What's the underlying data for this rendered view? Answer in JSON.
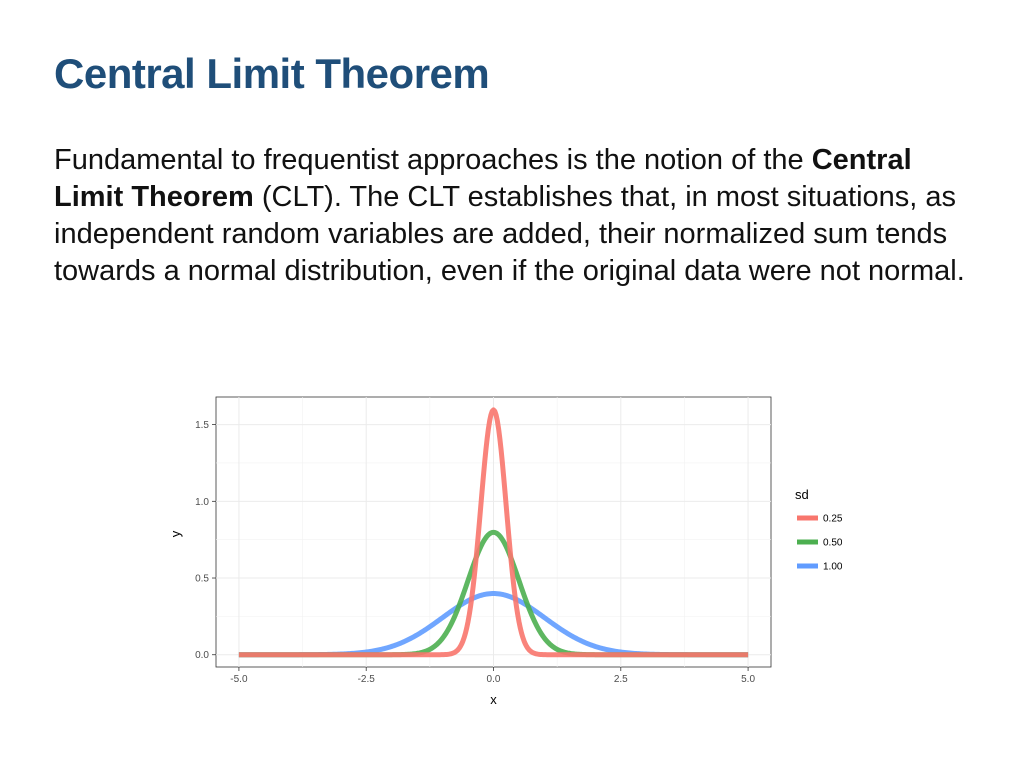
{
  "slide": {
    "title": "Central Limit Theorem",
    "body": {
      "text_before": "Fundamental to frequentist approaches is the notion of the ",
      "bold": "Central Limit Theorem",
      "text_after": " (CLT).  The CLT establishes that, in most situations, as independent random variables are added, their normalized sum tends towards a normal distribution, even if the original data were not normal."
    }
  },
  "chart_data": {
    "type": "line",
    "title": "",
    "xlabel": "x",
    "ylabel": "y",
    "xlim": [
      -5.0,
      5.0
    ],
    "ylim": [
      0.0,
      1.6
    ],
    "x_ticks": [
      -5.0,
      -2.5,
      0.0,
      2.5,
      5.0
    ],
    "x_tick_labels": [
      "-5.0",
      "-2.5",
      "0.0",
      "2.5",
      "5.0"
    ],
    "y_ticks": [
      0.0,
      0.5,
      1.0,
      1.5
    ],
    "y_tick_labels": [
      "0.0",
      "0.5",
      "1.0",
      "1.5"
    ],
    "grid": true,
    "legend": {
      "title": "sd",
      "position": "right"
    },
    "series": [
      {
        "name": "0.25",
        "sd": 0.25,
        "mean": 0,
        "color": "#f8766d",
        "peak": 1.596
      },
      {
        "name": "0.50",
        "sd": 0.5,
        "mean": 0,
        "color": "#4caf50",
        "peak": 0.798
      },
      {
        "name": "1.00",
        "sd": 1.0,
        "mean": 0,
        "color": "#619cff",
        "peak": 0.399
      }
    ]
  }
}
